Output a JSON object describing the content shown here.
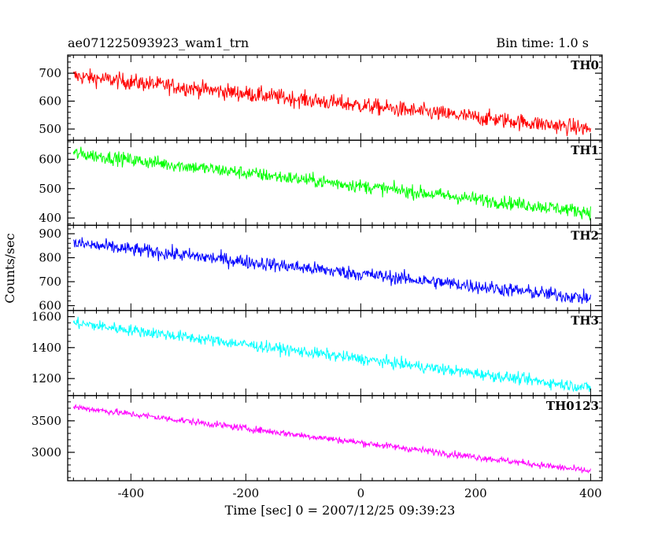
{
  "header": {
    "title": "ae071225093923_wam1_trn",
    "bin_time": "Bin time: 1.0 s"
  },
  "chart_data": {
    "type": "line",
    "xlabel": "Time [sec] 0 = 2007/12/25 09:39:23",
    "ylabel": "Counts/sec",
    "xlim": [
      -510,
      420
    ],
    "xticks": [
      -400,
      -200,
      0,
      200,
      400
    ],
    "x_start": -500,
    "x_end": 400,
    "x_step": 1,
    "grid": false,
    "panels": [
      {
        "name": "TH0",
        "color": "#ff0000",
        "ylim": [
          460,
          765
        ],
        "yticks": [
          500,
          600,
          700
        ],
        "trend_start": 690,
        "trend_end": 500,
        "noise": 38
      },
      {
        "name": "TH1",
        "color": "#00ff00",
        "ylim": [
          375,
          665
        ],
        "yticks": [
          400,
          500,
          600
        ],
        "trend_start": 620,
        "trend_end": 420,
        "noise": 30
      },
      {
        "name": "TH2",
        "color": "#0000ff",
        "ylim": [
          580,
          935
        ],
        "yticks": [
          600,
          700,
          800,
          900
        ],
        "trend_start": 860,
        "trend_end": 630,
        "noise": 38
      },
      {
        "name": "TH3",
        "color": "#00ffff",
        "ylim": [
          1090,
          1640
        ],
        "yticks": [
          1200,
          1400,
          1600
        ],
        "trend_start": 1560,
        "trend_end": 1140,
        "noise": 48
      },
      {
        "name": "TH0123",
        "color": "#ff00ff",
        "ylim": [
          2550,
          3900
        ],
        "yticks": [
          3000,
          3500
        ],
        "trend_start": 3720,
        "trend_end": 2700,
        "noise": 70
      }
    ]
  }
}
